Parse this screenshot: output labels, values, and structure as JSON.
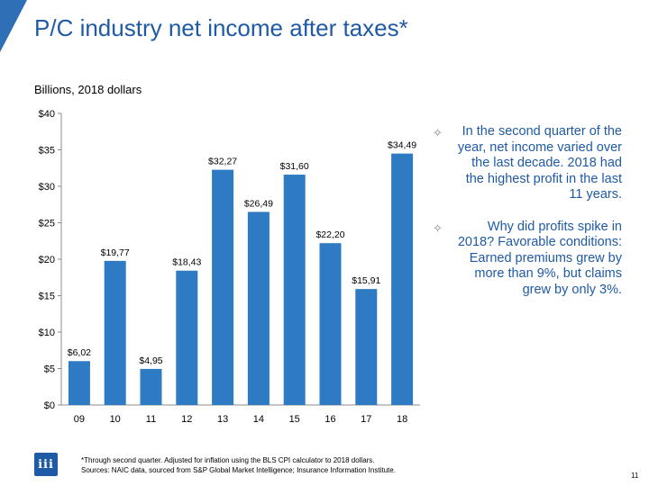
{
  "slide": {
    "title": "P/C industry net income after taxes*",
    "subtitle": "Billions, 2018 dollars",
    "page_number": "11",
    "footnote_line1": "*Through second quarter. Adjusted for inflation using the BLS CPI calculator to 2018 dollars.",
    "footnote_line2": "Sources: NAIC data, sourced from S&P Global Market Intelligence; Insurance Information Institute.",
    "logo_text": "iii",
    "bullets": [
      "In the second quarter of the year, net income varied over the last decade. 2018 had the highest profit in the last 11 years.",
      "Why did profits spike in 2018? Favorable conditions: Earned premiums grew by more than 9%, but claims grew by only 3%."
    ],
    "colors": {
      "accent": "#1f5aa6",
      "bar": "#2e7bc4",
      "corner": "#2e6fb6"
    }
  },
  "chart_data": {
    "type": "bar",
    "title": "P/C industry net income after taxes*",
    "ylabel": "Billions, 2018 dollars",
    "xlabel": "",
    "categories": [
      "09",
      "10",
      "11",
      "12",
      "13",
      "14",
      "15",
      "16",
      "17",
      "18"
    ],
    "values": [
      6.02,
      19.77,
      4.95,
      18.43,
      32.27,
      26.49,
      31.6,
      22.2,
      15.91,
      34.49
    ],
    "data_labels": [
      "$6,02",
      "$19,77",
      "$4,95",
      "$18,43",
      "$32,27",
      "$26,49",
      "$31,60",
      "$22,20",
      "$15,91",
      "$34,49"
    ],
    "ylim": [
      0,
      40
    ],
    "yticks": [
      0,
      5,
      10,
      15,
      20,
      25,
      30,
      35,
      40
    ],
    "ytick_labels": [
      "$0",
      "$5",
      "$10",
      "$15",
      "$20",
      "$25",
      "$30",
      "$35",
      "$40"
    ],
    "grid": false,
    "legend": "none"
  }
}
